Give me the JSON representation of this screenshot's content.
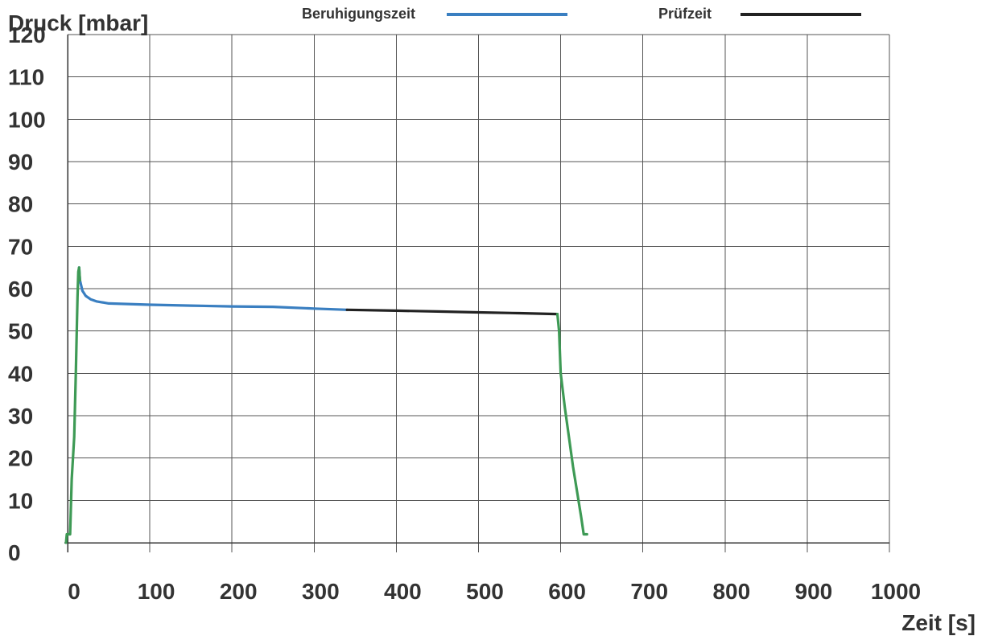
{
  "chart_data": {
    "type": "line",
    "ylabel": "Druck [mbar]",
    "xlabel": "Zeit [s]",
    "xlim": [
      0,
      1000
    ],
    "ylim": [
      0,
      120
    ],
    "xticks": [
      0,
      100,
      200,
      300,
      400,
      500,
      600,
      700,
      800,
      900,
      1000
    ],
    "yticks": [
      0,
      10,
      20,
      30,
      40,
      50,
      60,
      70,
      80,
      90,
      100,
      110,
      120
    ],
    "grid": true,
    "legend_position": "top",
    "legend": [
      {
        "label": "Beruhigungszeit",
        "color": "#3a7fc1"
      },
      {
        "label": "Prüfzeit",
        "color": "#222222"
      }
    ],
    "series": [
      {
        "name": "Beruhigungszeit",
        "color": "#3a7fc1",
        "points": [
          [
            14,
            65
          ],
          [
            15,
            62
          ],
          [
            18,
            59.5
          ],
          [
            22,
            58.3
          ],
          [
            28,
            57.5
          ],
          [
            35,
            57
          ],
          [
            50,
            56.5
          ],
          [
            100,
            56.2
          ],
          [
            150,
            56
          ],
          [
            200,
            55.8
          ],
          [
            250,
            55.7
          ],
          [
            300,
            55.3
          ],
          [
            340,
            55
          ]
        ]
      },
      {
        "name": "Prüfzeit",
        "color": "#222222",
        "points": [
          [
            340,
            55
          ],
          [
            400,
            54.8
          ],
          [
            450,
            54.6
          ],
          [
            500,
            54.4
          ],
          [
            550,
            54.2
          ],
          [
            596,
            54
          ]
        ]
      },
      {
        "color": "#3e9a55",
        "points": [
          [
            -2,
            0
          ],
          [
            -1,
            2
          ],
          [
            3,
            2
          ],
          [
            5,
            15
          ],
          [
            8,
            25
          ],
          [
            10,
            40
          ],
          [
            12,
            58
          ],
          [
            13,
            64
          ],
          [
            14,
            65
          ],
          [
            15,
            62
          ]
        ]
      },
      {
        "color": "#3e9a55",
        "points": [
          [
            596,
            54
          ],
          [
            598,
            50
          ],
          [
            600,
            40
          ],
          [
            605,
            32
          ],
          [
            610,
            25
          ],
          [
            615,
            18
          ],
          [
            620,
            12
          ],
          [
            625,
            6
          ],
          [
            628,
            2
          ],
          [
            632,
            2
          ]
        ]
      }
    ]
  }
}
